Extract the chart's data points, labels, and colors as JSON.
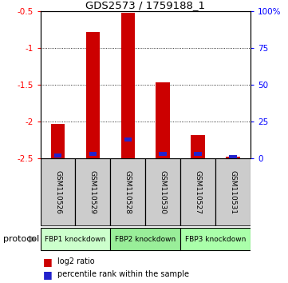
{
  "title": "GDS2573 / 1759188_1",
  "samples": [
    "GSM110526",
    "GSM110529",
    "GSM110528",
    "GSM110530",
    "GSM110527",
    "GSM110531"
  ],
  "log2_ratios": [
    -2.03,
    -0.78,
    -0.52,
    -1.47,
    -2.18,
    -2.48
  ],
  "percentile_ranks": [
    2,
    3,
    13,
    3,
    3,
    1
  ],
  "ylim_left": [
    -2.5,
    -0.5
  ],
  "yticks_left": [
    -0.5,
    -1.0,
    -1.5,
    -2.0,
    -2.5
  ],
  "ytick_labels_left": [
    "-0.5",
    "-1",
    "-1.5",
    "-2",
    "-2.5"
  ],
  "yticks_right": [
    0,
    25,
    50,
    75,
    100
  ],
  "ytick_labels_right": [
    "0",
    "25",
    "50",
    "75",
    "100%"
  ],
  "protocols": [
    {
      "label": "FBP1 knockdown",
      "indices": [
        0,
        1
      ]
    },
    {
      "label": "FBP2 knockdown",
      "indices": [
        2,
        3
      ]
    },
    {
      "label": "FBP3 knockdown",
      "indices": [
        4,
        5
      ]
    }
  ],
  "proto_colors": [
    "#ccffcc",
    "#99ee99",
    "#aaffaa"
  ],
  "bar_color": "#cc0000",
  "blue_color": "#2222cc",
  "bar_width": 0.4,
  "sample_box_color": "#cccccc",
  "legend_red_label": "log2 ratio",
  "legend_blue_label": "percentile rank within the sample",
  "bar_bottom": -2.5
}
